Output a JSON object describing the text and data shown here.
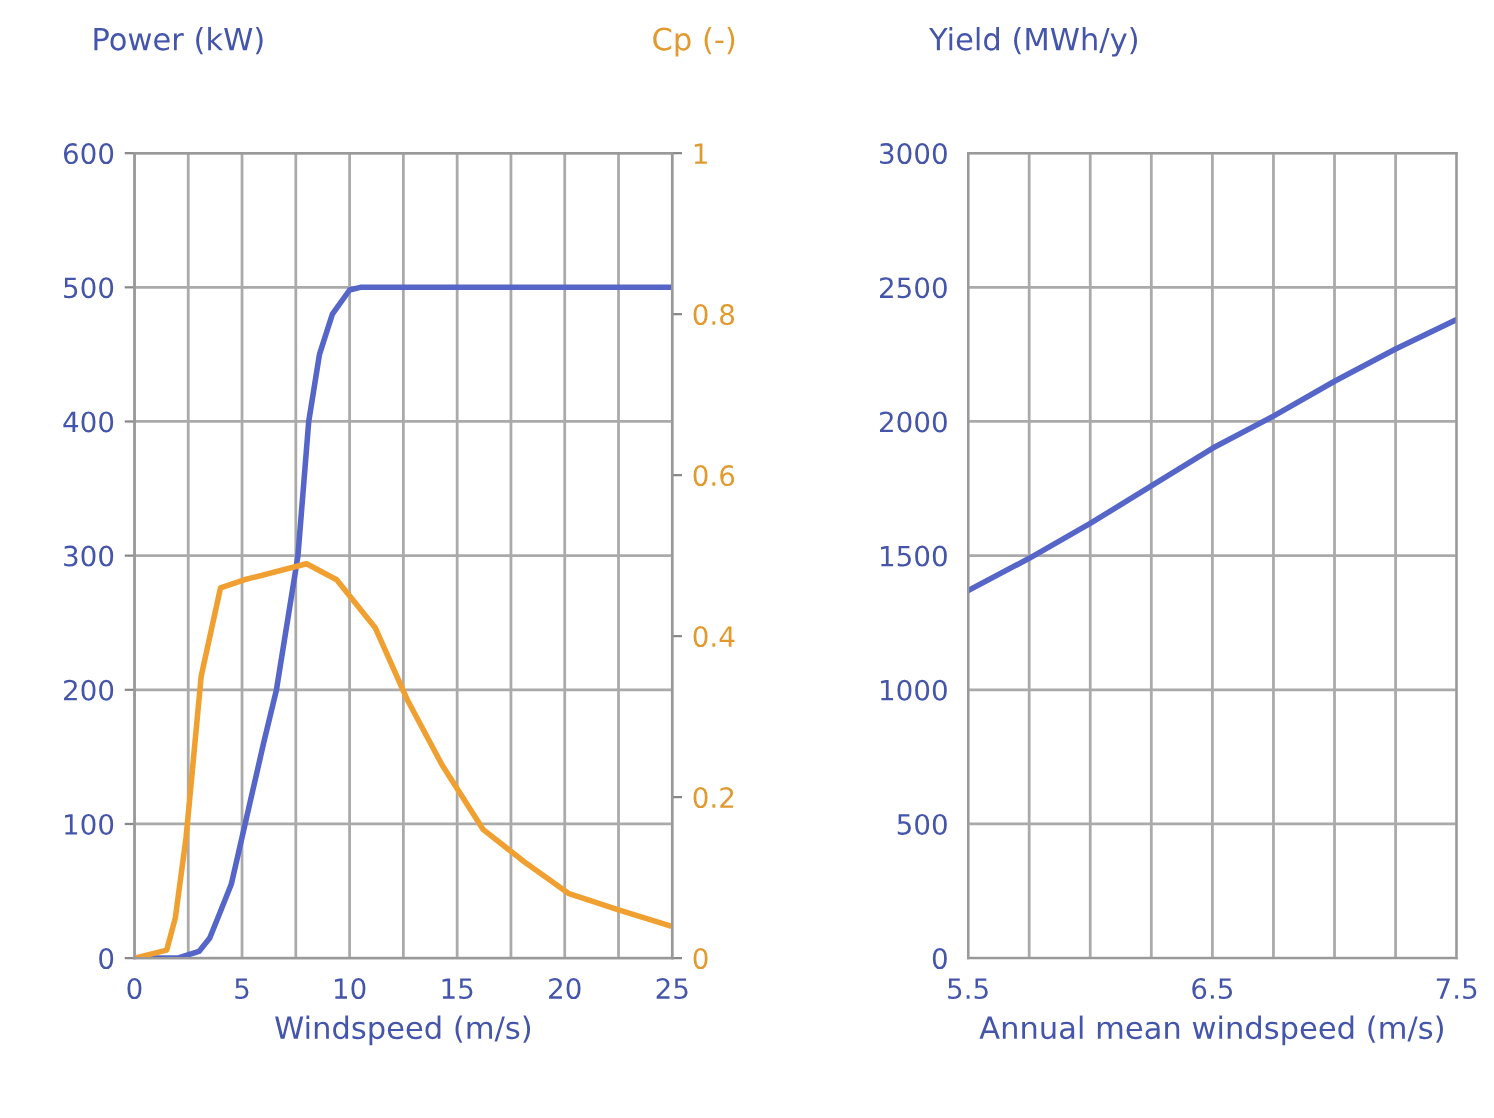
{
  "chart_data": [
    {
      "type": "line",
      "xlabel": "Windspeed (m/s)",
      "ylabel": "Power (kW)",
      "y2label": "Cp (-)",
      "xlim": [
        0,
        25
      ],
      "xticks": [
        0,
        {
          "value": 2.5,
          "label": null
        },
        5,
        {
          "value": 7.5,
          "label": null
        },
        10,
        {
          "value": 12.5,
          "label": null
        },
        15,
        {
          "value": 17.5,
          "label": null
        },
        20,
        {
          "value": 22.5,
          "label": null
        },
        25
      ],
      "ylim": [
        0,
        600
      ],
      "yticks": [
        0,
        100,
        200,
        300,
        400,
        500,
        600
      ],
      "y2lim": [
        0,
        1
      ],
      "y2ticks": [
        0,
        0.2,
        0.4,
        0.6,
        0.8,
        1
      ],
      "grid": true,
      "legend": false,
      "marker": "none",
      "line_style": "solid",
      "series": [
        {
          "color": "#5566c8",
          "x": [
            0,
            2,
            3,
            3.5,
            4,
            4.5,
            5,
            6,
            6.6,
            7.6,
            8.1,
            8.6,
            9.2,
            10,
            10.5,
            25
          ],
          "values": [
            0,
            0,
            5,
            15,
            35,
            55,
            90,
            160,
            200,
            300,
            400,
            450,
            480,
            498,
            500,
            500
          ]
        },
        {
          "color": "#f0a030",
          "axis": "y2",
          "x": [
            0,
            1.5,
            1.9,
            2.4,
            3.1,
            4.0,
            5.1,
            8.0,
            9.4,
            11.2,
            12.7,
            14.3,
            16.2,
            18.1,
            20.2,
            22.5,
            24.9
          ],
          "values": [
            0,
            0.01,
            0.05,
            0.15,
            0.35,
            0.46,
            0.47,
            0.49,
            0.47,
            0.41,
            0.32,
            0.24,
            0.16,
            0.12,
            0.08,
            0.06,
            0.04
          ]
        }
      ]
    },
    {
      "type": "line",
      "xlabel": "Annual mean windspeed (m/s)",
      "ylabel": "Yield (MWh/y)",
      "xlim": [
        5.5,
        7.5
      ],
      "xticks": [
        5.5,
        {
          "value": 5.75,
          "label": null
        },
        {
          "value": 6.0,
          "label": null
        },
        {
          "value": 6.25,
          "label": null
        },
        6.5,
        {
          "value": 6.75,
          "label": null
        },
        {
          "value": 7.0,
          "label": null
        },
        {
          "value": 7.25,
          "label": null
        },
        7.5
      ],
      "ylim": [
        0,
        3000
      ],
      "yticks": [
        0,
        500,
        1000,
        1500,
        2000,
        2500,
        3000
      ],
      "grid": true,
      "legend": false,
      "marker": "none",
      "line_style": "solid",
      "series": [
        {
          "color": "#5566c8",
          "x": [
            5.5,
            5.75,
            6.0,
            6.25,
            6.5,
            6.75,
            7.0,
            7.25,
            7.5
          ],
          "values": [
            1370,
            1490,
            1620,
            1760,
            1900,
            2020,
            2150,
            2270,
            2380
          ]
        }
      ]
    }
  ]
}
